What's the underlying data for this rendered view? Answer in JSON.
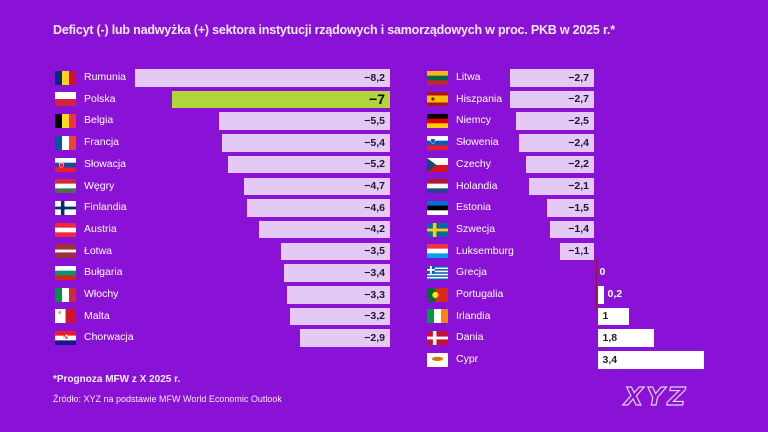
{
  "title": "Deficyt (-) lub nadwyżka (+) sektora instytucji rządowych i samorządowych w proc. PKB w 2025 r.*",
  "footnote": "*Prognoza MFW z X 2025 r.",
  "source": "Źródło: XYZ na podstawie MFW World Economic Outlook",
  "logo": "XYZ",
  "colors": {
    "background": "#8A12D6",
    "bar_negative": "#E3C9F3",
    "bar_highlight": "#B1D53A",
    "bar_positive": "#FFFFFF",
    "value_text": "#241536",
    "label_text": "#FFFFFF",
    "outside_value_text": "#FFFFFF",
    "zero_line": "#8E1430",
    "title_text": "#F6EBFC"
  },
  "chart_data": {
    "type": "bar",
    "orientation": "horizontal",
    "title": "Deficyt (-) lub nadwyżka (+) sektora instytucji rządowych i samorządowych w proc. PKB w 2025 r.*",
    "unit": "proc. PKB",
    "value_range": [
      -8.2,
      3.4
    ],
    "highlighted_country": "Polska",
    "columns": [
      {
        "name": "left",
        "rows": [
          {
            "country": "Rumunia",
            "value": -8.2,
            "display": "−8,2",
            "flag": {
              "name": "romania",
              "type": "v",
              "colors": [
                "#002B7F",
                "#FCD116",
                "#CE1126"
              ]
            }
          },
          {
            "country": "Polska",
            "value": -7,
            "display": "−7",
            "highlight": true,
            "flag": {
              "name": "poland",
              "type": "h",
              "colors": [
                "#FFFFFF",
                "#D4213D"
              ]
            }
          },
          {
            "country": "Belgia",
            "value": -5.5,
            "display": "−5,5",
            "flag": {
              "name": "belgium",
              "type": "v",
              "colors": [
                "#000000",
                "#FDDA24",
                "#EF3340"
              ]
            }
          },
          {
            "country": "Francja",
            "value": -5.4,
            "display": "−5,4",
            "flag": {
              "name": "france",
              "type": "v",
              "colors": [
                "#0055A4",
                "#FFFFFF",
                "#EF4135"
              ]
            }
          },
          {
            "country": "Słowacja",
            "value": -5.2,
            "display": "−5,2",
            "flag": {
              "name": "slovakia",
              "type": "h",
              "colors": [
                "#FFFFFF",
                "#0B4EA2",
                "#EE1C25"
              ],
              "emblem": {
                "shape": "shield",
                "color": "#EE1C25",
                "x": 0.3,
                "y": 0.55
              }
            }
          },
          {
            "country": "Węgry",
            "value": -4.7,
            "display": "−4,7",
            "flag": {
              "name": "hungary",
              "type": "h",
              "colors": [
                "#CE2939",
                "#FFFFFF",
                "#477050"
              ]
            }
          },
          {
            "country": "Finlandia",
            "value": -4.6,
            "display": "−4,6",
            "flag": {
              "name": "finland",
              "type": "nordic",
              "bg": "#FFFFFF",
              "cross": "#002F6C"
            }
          },
          {
            "country": "Austria",
            "value": -4.2,
            "display": "−4,2",
            "flag": {
              "name": "austria",
              "type": "h",
              "colors": [
                "#ED2939",
                "#FFFFFF",
                "#ED2939"
              ]
            }
          },
          {
            "country": "Łotwa",
            "value": -3.5,
            "display": "−3,5",
            "flag": {
              "name": "latvia",
              "type": "h",
              "colors": [
                "#9E3039",
                "#FFFFFF",
                "#9E3039"
              ],
              "weights": [
                2,
                1,
                2
              ]
            }
          },
          {
            "country": "Bułgaria",
            "value": -3.4,
            "display": "−3,4",
            "flag": {
              "name": "bulgaria",
              "type": "h",
              "colors": [
                "#FFFFFF",
                "#00966E",
                "#D62612"
              ]
            }
          },
          {
            "country": "Włochy",
            "value": -3.3,
            "display": "−3,3",
            "flag": {
              "name": "italy",
              "type": "v",
              "colors": [
                "#009246",
                "#FFFFFF",
                "#CE2B37"
              ]
            }
          },
          {
            "country": "Malta",
            "value": -3.2,
            "display": "−3,2",
            "flag": {
              "name": "malta",
              "type": "v",
              "colors": [
                "#FFFFFF",
                "#CF142B"
              ],
              "emblem": {
                "shape": "dot",
                "color": "#B9B9B9",
                "x": 0.22,
                "y": 0.25
              }
            }
          },
          {
            "country": "Chorwacja",
            "value": -2.9,
            "display": "−2,9",
            "flag": {
              "name": "croatia",
              "type": "h",
              "colors": [
                "#ED1C24",
                "#FFFFFF",
                "#171796"
              ],
              "emblem": {
                "shape": "checker",
                "color": "#ED1C24",
                "x": 0.5,
                "y": 0.4
              }
            }
          }
        ]
      },
      {
        "name": "right",
        "rows": [
          {
            "country": "Litwa",
            "value": -2.7,
            "display": "−2,7",
            "flag": {
              "name": "lithuania",
              "type": "h",
              "colors": [
                "#FDB913",
                "#006A44",
                "#C1272D"
              ]
            }
          },
          {
            "country": "Hiszpania",
            "value": -2.7,
            "display": "−2,7",
            "flag": {
              "name": "spain",
              "type": "h",
              "colors": [
                "#AA151B",
                "#F1BF00",
                "#AA151B"
              ],
              "weights": [
                1,
                2,
                1
              ],
              "emblem": {
                "shape": "dot",
                "color": "#8D1015",
                "x": 0.28,
                "y": 0.5
              }
            }
          },
          {
            "country": "Niemcy",
            "value": -2.5,
            "display": "−2,5",
            "flag": {
              "name": "germany",
              "type": "h",
              "colors": [
                "#000000",
                "#DD0000",
                "#FFCE00"
              ]
            }
          },
          {
            "country": "Słowenia",
            "value": -2.4,
            "display": "−2,4",
            "flag": {
              "name": "slovenia",
              "type": "h",
              "colors": [
                "#FFFFFF",
                "#005BBB",
                "#ED1C24"
              ],
              "emblem": {
                "shape": "shield",
                "color": "#1E4E9C",
                "x": 0.28,
                "y": 0.38
              }
            }
          },
          {
            "country": "Czechy",
            "value": -2.2,
            "display": "−2,2",
            "flag": {
              "name": "czechia",
              "type": "triangle",
              "colors": [
                "#FFFFFF",
                "#D7141A"
              ],
              "triangle": "#11457E"
            }
          },
          {
            "country": "Holandia",
            "value": -2.1,
            "display": "−2,1",
            "flag": {
              "name": "netherlands",
              "type": "h",
              "colors": [
                "#AE1C28",
                "#FFFFFF",
                "#21468B"
              ]
            }
          },
          {
            "country": "Estonia",
            "value": -1.5,
            "display": "−1,5",
            "flag": {
              "name": "estonia",
              "type": "h",
              "colors": [
                "#0072CE",
                "#000000",
                "#FFFFFF"
              ]
            }
          },
          {
            "country": "Szwecja",
            "value": -1.4,
            "display": "−1,4",
            "flag": {
              "name": "sweden",
              "type": "nordic",
              "bg": "#006AA7",
              "cross": "#FECC02"
            }
          },
          {
            "country": "Luksemburg",
            "value": -1.1,
            "display": "−1,1",
            "flag": {
              "name": "luxembourg",
              "type": "h",
              "colors": [
                "#EF3340",
                "#FFFFFF",
                "#00A3E0"
              ]
            }
          },
          {
            "country": "Grecja",
            "value": 0,
            "display": "0",
            "flag": {
              "name": "greece",
              "type": "greece",
              "blue": "#0D5EAF",
              "white": "#FFFFFF"
            }
          },
          {
            "country": "Portugalia",
            "value": 0.2,
            "display": "0,2",
            "flag": {
              "name": "portugal",
              "type": "portugal",
              "green": "#046A38",
              "red": "#DA291C",
              "emblem_color": "#FFE900"
            }
          },
          {
            "country": "Irlandia",
            "value": 1,
            "display": "1",
            "flag": {
              "name": "ireland",
              "type": "v",
              "colors": [
                "#009A44",
                "#FFFFFF",
                "#FF8200"
              ]
            }
          },
          {
            "country": "Dania",
            "value": 1.8,
            "display": "1,8",
            "flag": {
              "name": "denmark",
              "type": "nordic",
              "bg": "#C8102E",
              "cross": "#FFFFFF"
            }
          },
          {
            "country": "Cypr",
            "value": 3.4,
            "display": "3,4",
            "flag": {
              "name": "cyprus",
              "type": "cyprus",
              "bg": "#FFFFFF",
              "island": "#D57800"
            }
          }
        ]
      }
    ]
  }
}
